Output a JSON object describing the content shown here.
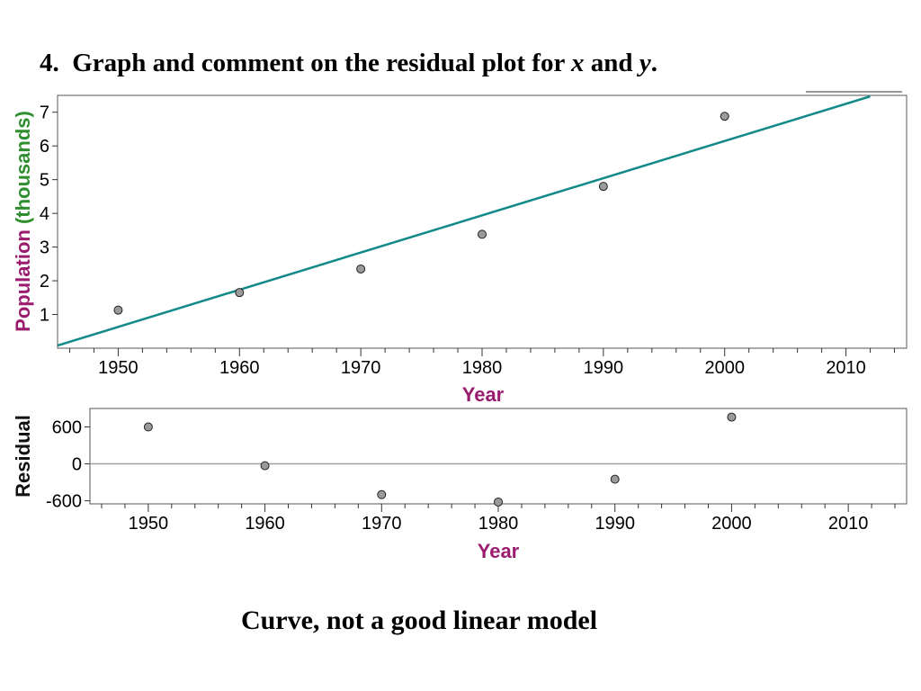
{
  "question": {
    "number": "4.",
    "text_before": "Graph and comment on the residual plot for",
    "var_x": "x",
    "text_and": "and",
    "var_y": "y",
    "period": "."
  },
  "conclusion": "Curve, not a good linear model",
  "colors": {
    "line": "#138a8a",
    "point_fill": "#9a9a9a",
    "axis_title_purple": "#9b1b6e",
    "axis_title_green": "#2f8f2f",
    "zero_line": "#a0a0a0"
  },
  "chart_data": [
    {
      "type": "scatter",
      "title": "",
      "xlabel": "Year",
      "ylabel_main": "Population",
      "ylabel_unit": "(thousands)",
      "xlim": [
        1945,
        2015
      ],
      "ylim": [
        0,
        7.5
      ],
      "xticks": [
        "1950",
        "1960",
        "1970",
        "1980",
        "1990",
        "2000",
        "2010"
      ],
      "yticks": [
        "1",
        "2",
        "3",
        "4",
        "5",
        "6",
        "7"
      ],
      "points": {
        "x": [
          1950,
          1960,
          1970,
          1980,
          1990,
          2000
        ],
        "y": [
          1.13,
          1.65,
          2.35,
          3.38,
          4.8,
          6.88
        ]
      },
      "regression_line": {
        "x": [
          1945,
          2012
        ],
        "y": [
          0.08,
          7.47
        ]
      },
      "grid": false
    },
    {
      "type": "scatter",
      "title": "",
      "xlabel": "Year",
      "ylabel": "Residual",
      "xlim": [
        1945,
        2015
      ],
      "ylim": [
        -650,
        900
      ],
      "xticks": [
        "1950",
        "1960",
        "1970",
        "1980",
        "1990",
        "2000",
        "2010"
      ],
      "yticks": [
        "600",
        "0",
        "-600"
      ],
      "points": {
        "x": [
          1950,
          1960,
          1970,
          1980,
          1990,
          2000
        ],
        "y": [
          600,
          -30,
          -500,
          -620,
          -250,
          760
        ]
      },
      "zero_line": true,
      "grid": false
    }
  ]
}
